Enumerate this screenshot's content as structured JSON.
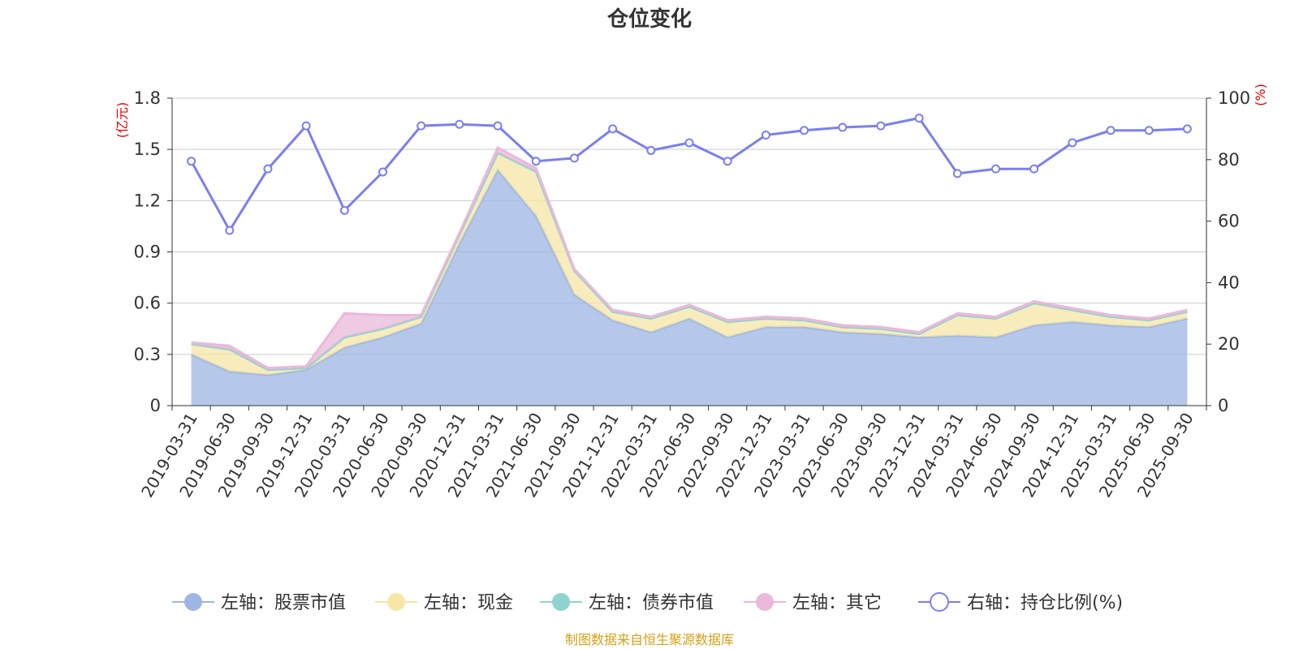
{
  "chart_data": {
    "type": "area",
    "title": "仓位变化",
    "left_axis_unit": "(亿元)",
    "right_axis_unit": "(%)",
    "source": "制图数据来自恒生聚源数据库",
    "categories": [
      "2019-03-31",
      "2019-06-30",
      "2019-09-30",
      "2019-12-31",
      "2020-03-31",
      "2020-06-30",
      "2020-09-30",
      "2020-12-31",
      "2021-03-31",
      "2021-06-30",
      "2021-09-30",
      "2021-12-31",
      "2022-03-31",
      "2022-06-30",
      "2022-09-30",
      "2022-12-31",
      "2023-03-31",
      "2023-06-30",
      "2023-09-30",
      "2023-12-31",
      "2024-03-31",
      "2024-06-30",
      "2024-09-30",
      "2024-12-31",
      "2025-03-31",
      "2025-06-30",
      "2025-09-30"
    ],
    "left_axis": {
      "ylim": [
        0,
        1.8
      ],
      "ticks": [
        "0",
        "0.3",
        "0.6",
        "0.9",
        "1.2",
        "1.5",
        "1.8"
      ]
    },
    "right_axis": {
      "ylim": [
        0,
        100
      ],
      "ticks": [
        "0",
        "20",
        "40",
        "60",
        "80",
        "100"
      ]
    },
    "series": [
      {
        "name": "左轴：股票市值",
        "axis": "left",
        "kind": "stacked-area",
        "color": "#9db6e3",
        "values": [
          0.3,
          0.2,
          0.18,
          0.21,
          0.34,
          0.4,
          0.48,
          0.95,
          1.38,
          1.11,
          0.65,
          0.5,
          0.43,
          0.51,
          0.4,
          0.46,
          0.46,
          0.43,
          0.42,
          0.4,
          0.41,
          0.4,
          0.47,
          0.49,
          0.47,
          0.46,
          0.51
        ]
      },
      {
        "name": "左轴：现金",
        "axis": "left",
        "kind": "stacked-area",
        "color": "#f7e6a6",
        "values": [
          0.06,
          0.13,
          0.03,
          0.01,
          0.06,
          0.05,
          0.04,
          0.05,
          0.1,
          0.26,
          0.14,
          0.05,
          0.08,
          0.07,
          0.09,
          0.05,
          0.04,
          0.03,
          0.03,
          0.02,
          0.12,
          0.11,
          0.13,
          0.07,
          0.05,
          0.04,
          0.04
        ]
      },
      {
        "name": "左轴：债券市值",
        "axis": "left",
        "kind": "stacked-area",
        "color": "#8fd3d0",
        "values": [
          0,
          0,
          0,
          0,
          0,
          0,
          0,
          0,
          0,
          0,
          0,
          0,
          0,
          0,
          0,
          0,
          0,
          0,
          0,
          0,
          0,
          0,
          0,
          0,
          0,
          0,
          0
        ]
      },
      {
        "name": "左轴：其它",
        "axis": "left",
        "kind": "stacked-area",
        "color": "#eab8da",
        "values": [
          0.01,
          0.02,
          0.01,
          0.01,
          0.14,
          0.08,
          0.01,
          0.01,
          0.03,
          0.02,
          0.01,
          0.01,
          0.01,
          0.01,
          0.01,
          0.01,
          0.01,
          0.01,
          0.01,
          0.01,
          0.01,
          0.01,
          0.01,
          0.01,
          0.01,
          0.01,
          0.01
        ]
      },
      {
        "name": "右轴：持仓比例(%)",
        "axis": "right",
        "kind": "line",
        "color": "#7b7ff0",
        "values": [
          79.5,
          57.0,
          77.0,
          91.0,
          63.5,
          76.0,
          91.0,
          91.5,
          91.0,
          79.5,
          80.5,
          90.0,
          83.0,
          85.5,
          79.5,
          88.0,
          89.5,
          90.5,
          91.0,
          93.5,
          75.5,
          77.0,
          77.0,
          85.5,
          89.5,
          89.5,
          90.0
        ]
      }
    ]
  },
  "colors": {
    "title": "#333333",
    "axis_unit": "#e60000",
    "source": "#d4a017",
    "grid": "#cccccc",
    "axis": "#333333"
  }
}
